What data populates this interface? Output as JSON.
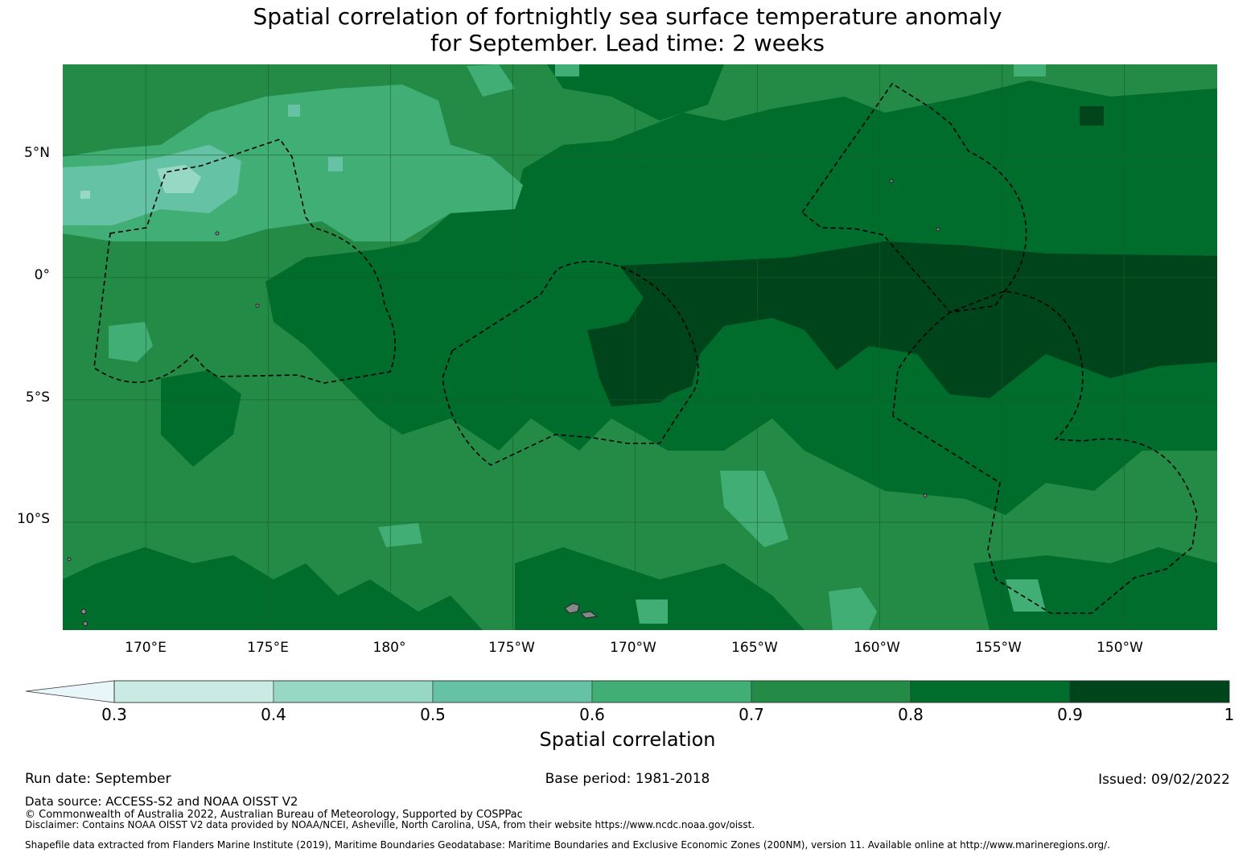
{
  "title": {
    "line1": "Spatial correlation of fortnightly sea surface temperature anomaly",
    "line2": "for September. Lead time: 2 weeks"
  },
  "map": {
    "lat_labels": [
      "5°N",
      "0°",
      "5°S",
      "10°S"
    ],
    "lon_labels": [
      "170°E",
      "175°E",
      "180°",
      "175°W",
      "170°W",
      "165°W",
      "160°W",
      "155°W",
      "150°W"
    ],
    "lat_values": [
      5,
      0,
      -5,
      -10
    ],
    "lon_values": [
      170,
      175,
      180,
      185,
      190,
      195,
      200,
      205,
      210
    ],
    "extent": {
      "lon_min": 166.6,
      "lon_max": 213.8,
      "lat_min": -14.4,
      "lat_max": 8.7
    },
    "gridlines": true,
    "regions": [
      "eez-region-left",
      "eez-region-center",
      "eez-region-right-north",
      "eez-region-right-south"
    ]
  },
  "colorbar": {
    "ticks": [
      "0.3",
      "0.4",
      "0.5",
      "0.6",
      "0.7",
      "0.8",
      "0.9",
      "1"
    ],
    "bins": [
      {
        "from": 0.3,
        "to": 0.4,
        "color": "#c9ebe3"
      },
      {
        "from": 0.4,
        "to": 0.5,
        "color": "#97d8c4"
      },
      {
        "from": 0.5,
        "to": 0.6,
        "color": "#66c2a4"
      },
      {
        "from": 0.6,
        "to": 0.7,
        "color": "#41ae76"
      },
      {
        "from": 0.7,
        "to": 0.8,
        "color": "#238b45"
      },
      {
        "from": 0.8,
        "to": 0.9,
        "color": "#006d2c"
      },
      {
        "from": 0.9,
        "to": 1.0,
        "color": "#00441b"
      }
    ],
    "under_color": "#e8f5f9",
    "extend": "min",
    "label": "Spatial correlation"
  },
  "footer": {
    "run_date": "Run date: September",
    "base_period": "Base period: 1981-2018",
    "issued": "Issued: 09/02/2022",
    "data_source": "Data source: ACCESS-S2 and NOAA OISST V2",
    "copyright": "© Commonwealth of Australia 2022, Australian Bureau of Meteorology, Supported by COSPPac",
    "disclaimer": "Disclaimer: Contains NOAA OISST V2 data provided by NOAA/NCEI, Asheville, North Carolina, USA, from their website https://www.ncdc.noaa.gov/oisst.",
    "shapefile": "Shapefile data extracted from Flanders Marine Institute (2019), Maritime Boundaries Geodatabase: Maritime Boundaries and Exclusive Economic Zones (200NM), version 11. Available online at http://www.marineregions.org/."
  }
}
